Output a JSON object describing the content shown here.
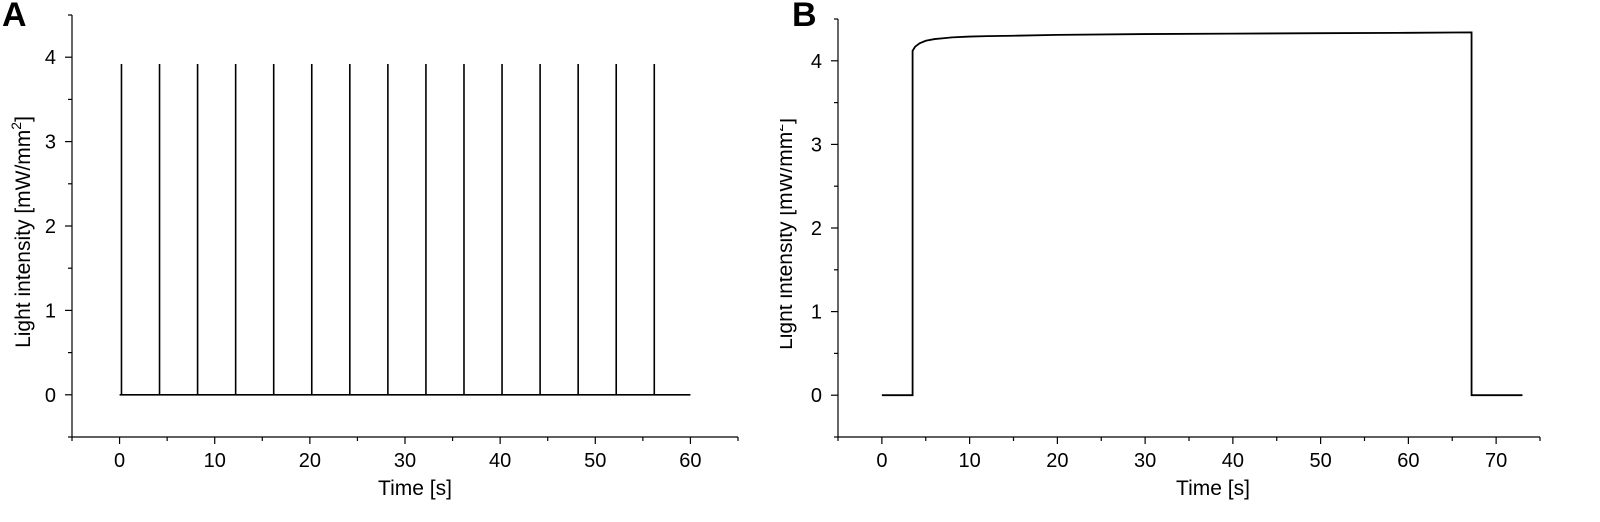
{
  "chart_data": [
    {
      "panel_label": "A",
      "type": "line",
      "xlabel": "Time [s]",
      "ylabel": "Light intensity [mW/mm",
      "ylabel_sup": "2",
      "ylabel_close": "]",
      "xlim": [
        -5,
        65
      ],
      "ylim": [
        -0.5,
        4.5
      ],
      "xticks": [
        0,
        10,
        20,
        30,
        40,
        50,
        60
      ],
      "yticks": [
        0,
        1,
        2,
        3,
        4
      ],
      "grid": false,
      "series": [
        {
          "line_color": "#000000",
          "pulse_times": [
            0.2,
            4.2,
            8.2,
            12.2,
            16.2,
            20.2,
            24.2,
            28.2,
            32.2,
            36.2,
            40.2,
            44.2,
            48.2,
            52.2,
            56.2
          ],
          "pulse_peak": 3.92,
          "baseline": 0,
          "x_start": 0,
          "x_end": 60
        }
      ]
    },
    {
      "panel_label": "B",
      "type": "line",
      "xlabel": "Time [s]",
      "ylabel": "Light intensity [mW/mm",
      "ylabel_sup": "2",
      "ylabel_close": "]",
      "xlim": [
        -5,
        75
      ],
      "ylim": [
        -0.5,
        4.5
      ],
      "xticks": [
        0,
        10,
        20,
        30,
        40,
        50,
        60,
        70
      ],
      "yticks": [
        0,
        1,
        2,
        3,
        4
      ],
      "grid": false,
      "series": [
        {
          "line_color": "#000000",
          "x": [
            0,
            3.5,
            3.5,
            3.8,
            4.3,
            5,
            6,
            7,
            8,
            10,
            12,
            15,
            20,
            30,
            40,
            50,
            60,
            67.2,
            67.2,
            73
          ],
          "y": [
            0,
            0,
            4.12,
            4.17,
            4.21,
            4.24,
            4.26,
            4.27,
            4.28,
            4.29,
            4.295,
            4.3,
            4.31,
            4.32,
            4.325,
            4.33,
            4.335,
            4.34,
            0,
            0
          ]
        }
      ]
    }
  ]
}
